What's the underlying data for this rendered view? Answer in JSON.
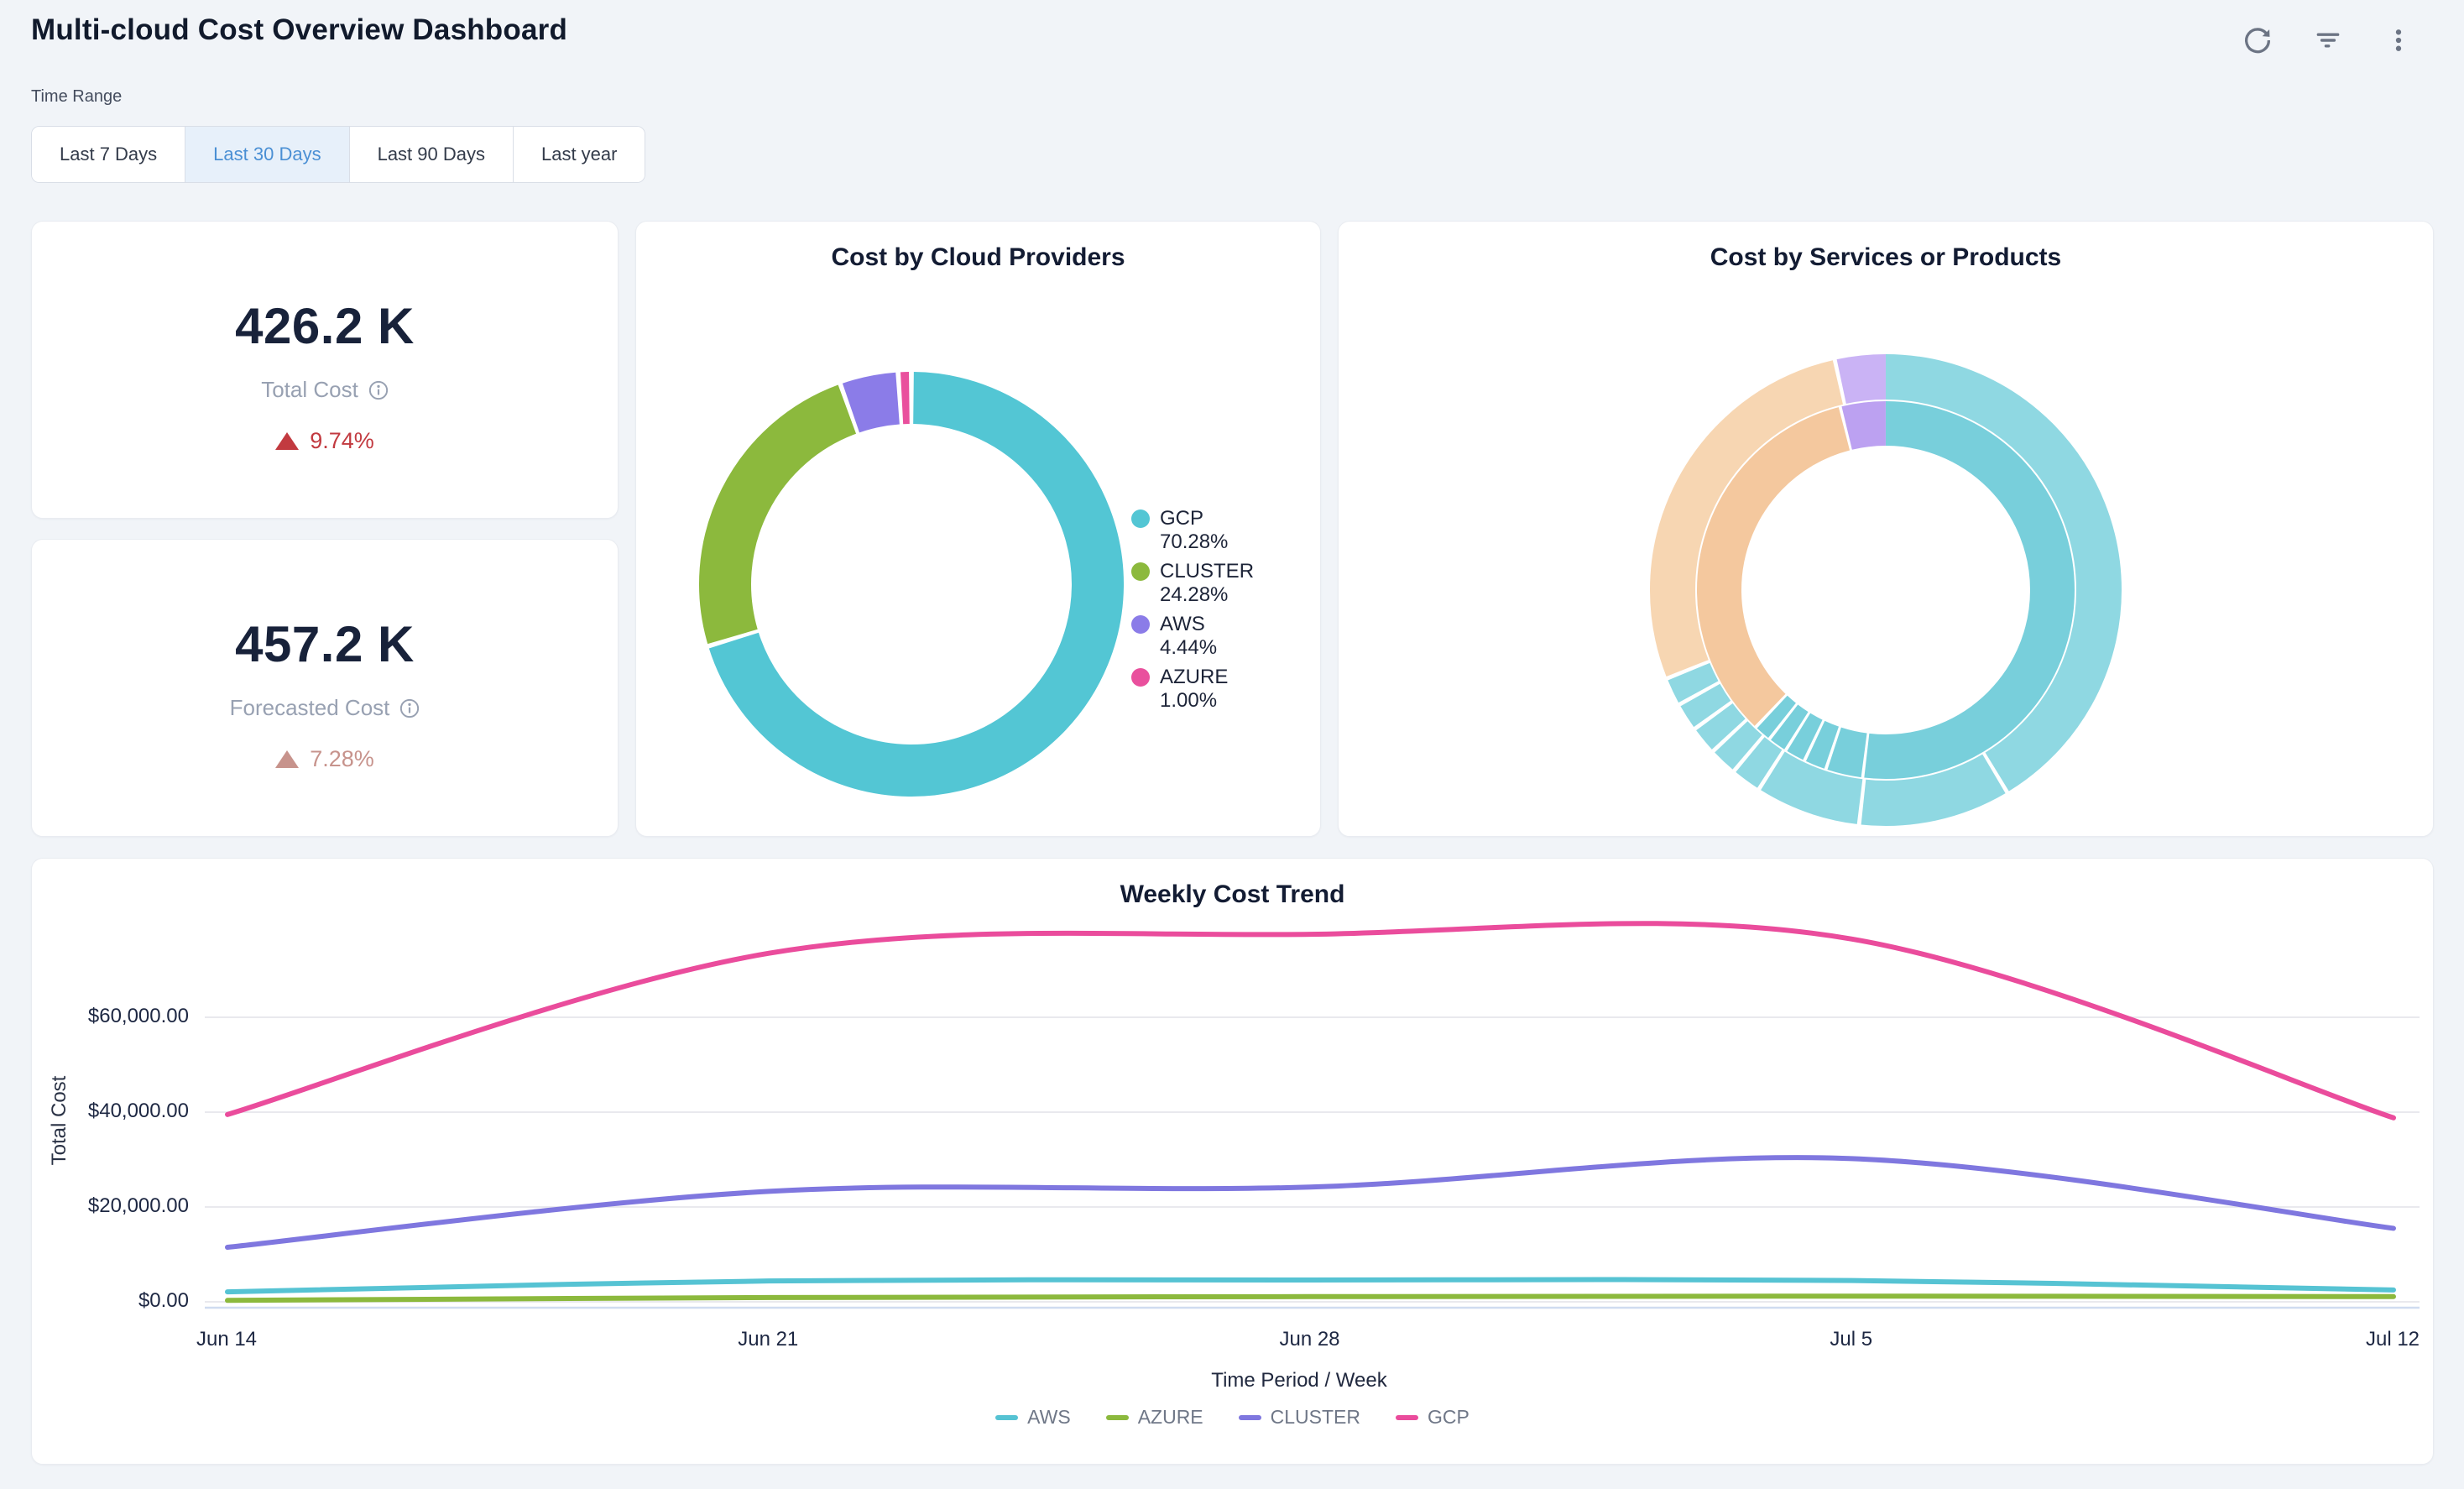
{
  "header": {
    "title": "Multi-cloud Cost Overview Dashboard",
    "icons": [
      "refresh",
      "filter",
      "more-options"
    ]
  },
  "time_range": {
    "label": "Time Range",
    "options": [
      "Last 7 Days",
      "Last 30 Days",
      "Last 90 Days",
      "Last year"
    ],
    "selected": "Last 30 Days",
    "selected_index": 1
  },
  "kpis": [
    {
      "value": "426.2 K",
      "label": "Total Cost",
      "delta": "9.74%",
      "direction": "up",
      "delta_color": "#c23a40"
    },
    {
      "value": "457.2 K",
      "label": "Forecasted Cost",
      "delta": "7.28%",
      "direction": "up",
      "delta_color": "#c7938c"
    }
  ],
  "colors": {
    "accent_blue": "#4a8fd4",
    "title_navy": "#131c33",
    "muted_gray": "#98a1b2",
    "icon_gray": "#6c7484",
    "grid": "#e9e9ee",
    "axis_line": "#cfdcf0"
  },
  "chart_data": [
    {
      "type": "pie",
      "subtype": "donut",
      "title": "Cost by Cloud Providers",
      "labels": [
        "GCP",
        "CLUSTER",
        "AWS",
        "AZURE"
      ],
      "values": [
        70.28,
        24.28,
        4.44,
        1.0
      ],
      "unit": "%",
      "colors": [
        "#53c6d4",
        "#8cb93d",
        "#8b7ce8",
        "#e9509d"
      ],
      "legend": [
        "GCP 70.28%",
        "CLUSTER 24.28%",
        "AWS 4.44%",
        "AZURE 1.00%"
      ],
      "legend_position": "right",
      "start_angle": "top",
      "direction": "clockwise"
    },
    {
      "type": "pie",
      "subtype": "sunburst",
      "title": "Cost by Services or Products",
      "rings": [
        {
          "name": "outer",
          "segments": [
            {
              "start": 0,
              "end": 148.5,
              "color": "#8fd8e2"
            },
            {
              "start": 149.5,
              "end": 186,
              "color": "#8fd8e2"
            },
            {
              "start": 187,
              "end": 212,
              "color": "#8fd8e2"
            },
            {
              "start": 213,
              "end": 219.5,
              "color": "#8fd8e2"
            },
            {
              "start": 220.5,
              "end": 226.5,
              "color": "#8fd8e2"
            },
            {
              "start": 227.5,
              "end": 233.5,
              "color": "#8fd8e2"
            },
            {
              "start": 234.5,
              "end": 240.5,
              "color": "#8fd8e2"
            },
            {
              "start": 241.5,
              "end": 247.5,
              "color": "#8fd8e2"
            },
            {
              "start": 248.5,
              "end": 347,
              "color": "#f7d6b2"
            },
            {
              "start": 348,
              "end": 360,
              "color": "#cab3f5"
            }
          ]
        },
        {
          "name": "inner",
          "segments": [
            {
              "start": 0,
              "end": 186.5,
              "color": "#78cfdb"
            },
            {
              "start": 187.5,
              "end": 198,
              "color": "#78cfdb"
            },
            {
              "start": 199,
              "end": 205,
              "color": "#78cfdb"
            },
            {
              "start": 206,
              "end": 211.5,
              "color": "#78cfdb"
            },
            {
              "start": 212.5,
              "end": 217.5,
              "color": "#78cfdb"
            },
            {
              "start": 218.5,
              "end": 223,
              "color": "#78cfdb"
            },
            {
              "start": 224,
              "end": 345.5,
              "color": "#f4c89e"
            },
            {
              "start": 346.5,
              "end": 360,
              "color": "#bca1f1"
            }
          ]
        }
      ]
    },
    {
      "type": "line",
      "title": "Weekly Cost Trend",
      "x": [
        "Jun 14",
        "Jun 21",
        "Jun 28",
        "Jul 5",
        "Jul 12"
      ],
      "series": [
        {
          "name": "AWS",
          "color": "#56c3d3",
          "values": [
            2100,
            4400,
            4600,
            4500,
            2500
          ]
        },
        {
          "name": "AZURE",
          "color": "#8cb93d",
          "values": [
            300,
            900,
            1100,
            1200,
            1100
          ]
        },
        {
          "name": "CLUSTER",
          "color": "#7f77df",
          "values": [
            11500,
            23300,
            24200,
            30200,
            15500
          ]
        },
        {
          "name": "GCP",
          "color": "#ea4c9c",
          "values": [
            39500,
            73500,
            77500,
            76500,
            38800
          ]
        }
      ],
      "xlabel": "Time Period / Week",
      "ylabel": "Total Cost",
      "yticks": [
        {
          "value": 0,
          "label": "$0.00"
        },
        {
          "value": 20000,
          "label": "$20,000.00"
        },
        {
          "value": 40000,
          "label": "$40,000.00"
        },
        {
          "value": 60000,
          "label": "$60,000.00"
        }
      ],
      "ylim": [
        0,
        83000
      ],
      "grid": true,
      "legend_position": "bottom"
    }
  ]
}
